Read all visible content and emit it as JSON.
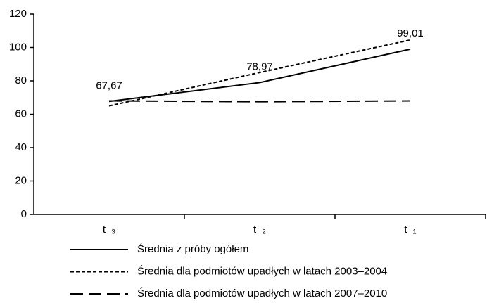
{
  "chart_data": {
    "type": "line",
    "categories": [
      "t₋₃",
      "t₋₂",
      "t₋₁"
    ],
    "series": [
      {
        "name": "Średnia z próby ogółem",
        "color": "#000000",
        "dash": "solid",
        "values": [
          67.67,
          78.97,
          99.01
        ],
        "value_labels": [
          "67,67",
          "78,97",
          "99,01"
        ]
      },
      {
        "name": "Średnia dla podmiotów upadłych w latach 2003–2004",
        "color": "#000000",
        "dash": "short",
        "values": [
          65,
          85,
          104.5
        ]
      },
      {
        "name": "Średnia dla podmiotów upadłych w latach 2007–2010",
        "color": "#000000",
        "dash": "long",
        "values": [
          68,
          67.5,
          68
        ]
      }
    ],
    "ylim": [
      0,
      120
    ],
    "yticks": [
      0,
      20,
      40,
      60,
      80,
      100,
      120
    ],
    "grid": false
  }
}
